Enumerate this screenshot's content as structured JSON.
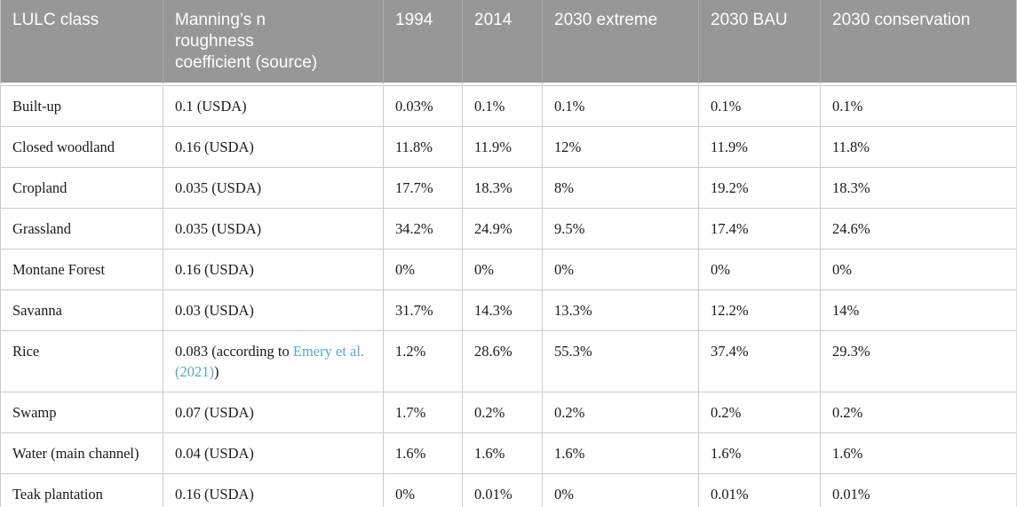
{
  "meta": {
    "colors": {
      "header_bg": "#979797",
      "header_text": "#ffffff",
      "header_divider": "#ababab",
      "body_text": "#1a1a1a",
      "row_border": "#cbcbcb",
      "link": "#58a8c8"
    }
  },
  "table": {
    "headers": [
      "LULC class",
      "Manning’s n\nroughness\ncoefficient (source)",
      "1994",
      "2014",
      "2030 extreme",
      "2030 BAU",
      "2030 conservation"
    ],
    "rows": [
      {
        "lulc": "Built-up",
        "manning": {
          "prefix": "0.1 (USDA)"
        },
        "values": [
          "0.03%",
          "0.1%",
          "0.1%",
          "0.1%",
          "0.1%"
        ]
      },
      {
        "lulc": "Closed woodland",
        "manning": {
          "prefix": "0.16 (USDA)"
        },
        "values": [
          "11.8%",
          "11.9%",
          "12%",
          "11.9%",
          "11.8%"
        ]
      },
      {
        "lulc": "Cropland",
        "manning": {
          "prefix": "0.035 (USDA)"
        },
        "values": [
          "17.7%",
          "18.3%",
          "8%",
          "19.2%",
          "18.3%"
        ]
      },
      {
        "lulc": "Grassland",
        "manning": {
          "prefix": "0.035 (USDA)"
        },
        "values": [
          "34.2%",
          "24.9%",
          "9.5%",
          "17.4%",
          "24.6%"
        ]
      },
      {
        "lulc": "Montane Forest",
        "manning": {
          "prefix": "0.16 (USDA)"
        },
        "values": [
          "0%",
          "0%",
          "0%",
          "0%",
          "0%"
        ]
      },
      {
        "lulc": "Savanna",
        "manning": {
          "prefix": "0.03 (USDA)"
        },
        "values": [
          "31.7%",
          "14.3%",
          "13.3%",
          "12.2%",
          "14%"
        ]
      },
      {
        "lulc": "Rice",
        "manning": {
          "prefix": "0.083 (according to ",
          "link": "Emery et al. (2021)",
          "suffix": ")"
        },
        "values": [
          "1.2%",
          "28.6%",
          "55.3%",
          "37.4%",
          "29.3%"
        ]
      },
      {
        "lulc": "Swamp",
        "manning": {
          "prefix": "0.07 (USDA)"
        },
        "values": [
          "1.7%",
          "0.2%",
          "0.2%",
          "0.2%",
          "0.2%"
        ]
      },
      {
        "lulc": "Water (main channel)",
        "manning": {
          "prefix": "0.04 (USDA)"
        },
        "values": [
          "1.6%",
          "1.6%",
          "1.6%",
          "1.6%",
          "1.6%"
        ]
      },
      {
        "lulc": "Teak plantation",
        "manning": {
          "prefix": "0.16 (USDA)"
        },
        "values": [
          "0%",
          "0.01%",
          "0%",
          "0.01%",
          "0.01%"
        ]
      }
    ]
  }
}
